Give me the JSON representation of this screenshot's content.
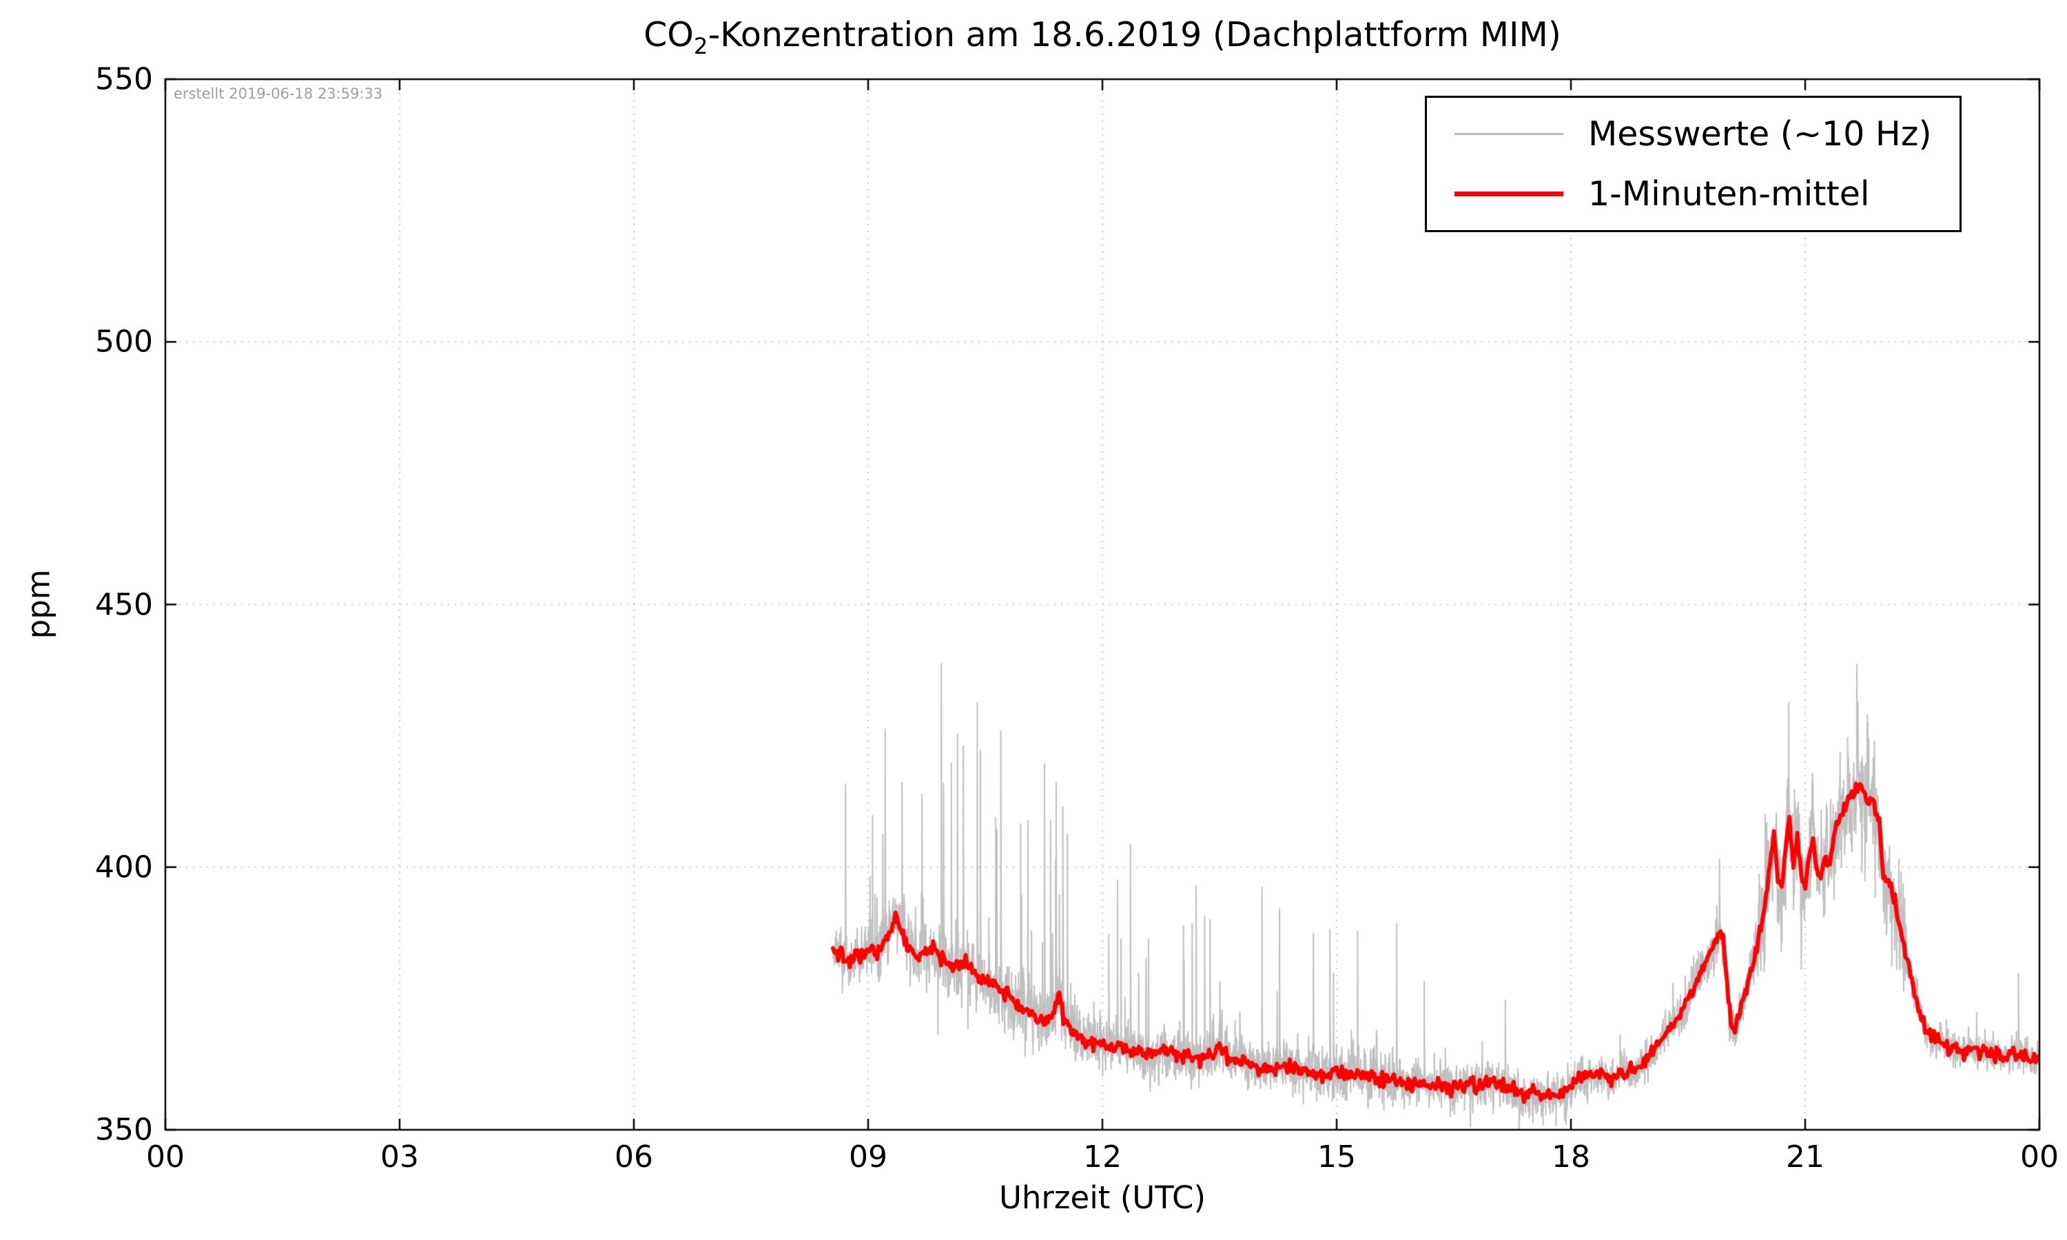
{
  "chart_data": {
    "type": "line",
    "title": "CO2-Konzentration am 18.6.2019 (Dachplattform MIM)",
    "title_parts": {
      "prefix": "CO",
      "subscript": "2",
      "rest": "-Konzentration am 18.6.2019 (Dachplattform MIM)"
    },
    "xlabel": "Uhrzeit (UTC)",
    "ylabel": "ppm",
    "annotation": "erstellt 2019-06-18 23:59:33",
    "xlim": [
      0,
      24
    ],
    "ylim": [
      350,
      550
    ],
    "xticks": {
      "positions": [
        0,
        3,
        6,
        9,
        12,
        15,
        18,
        21,
        24
      ],
      "labels": [
        "00",
        "03",
        "06",
        "09",
        "12",
        "15",
        "18",
        "21",
        "00"
      ]
    },
    "yticks": {
      "positions": [
        350,
        400,
        450,
        500,
        550
      ],
      "labels": [
        "350",
        "400",
        "450",
        "500",
        "550"
      ]
    },
    "grid": {
      "style": "dotted",
      "color": "#c9c9c9"
    },
    "legend": {
      "position": "upper right",
      "entries": [
        {
          "label": "Messwerte (~10 Hz)",
          "color": "#b8b8b8",
          "linewidth": 2
        },
        {
          "label": "1-Minuten-mittel",
          "color": "#ff0000",
          "linewidth": 6
        }
      ]
    },
    "series": [
      {
        "name": "1-Minuten-mittel",
        "color": "#ff0000",
        "points": [
          [
            8.55,
            384
          ],
          [
            8.65,
            383.5
          ],
          [
            8.8,
            382.5
          ],
          [
            9.0,
            384
          ],
          [
            9.1,
            383.5
          ],
          [
            9.25,
            386
          ],
          [
            9.35,
            391
          ],
          [
            9.45,
            387
          ],
          [
            9.55,
            384
          ],
          [
            9.7,
            383.5
          ],
          [
            9.85,
            384.5
          ],
          [
            10.0,
            382
          ],
          [
            10.1,
            381
          ],
          [
            10.25,
            382
          ],
          [
            10.4,
            379
          ],
          [
            10.55,
            378
          ],
          [
            10.7,
            377
          ],
          [
            10.85,
            374.5
          ],
          [
            11.0,
            373
          ],
          [
            11.15,
            371.5
          ],
          [
            11.3,
            370.5
          ],
          [
            11.4,
            373
          ],
          [
            11.45,
            376
          ],
          [
            11.5,
            371
          ],
          [
            11.65,
            368.5
          ],
          [
            11.8,
            367
          ],
          [
            12.0,
            366
          ],
          [
            12.2,
            365.5
          ],
          [
            12.4,
            365
          ],
          [
            12.6,
            364.5
          ],
          [
            12.8,
            365
          ],
          [
            13.0,
            364
          ],
          [
            13.2,
            363.5
          ],
          [
            13.4,
            364.5
          ],
          [
            13.5,
            366
          ],
          [
            13.6,
            364
          ],
          [
            13.8,
            363
          ],
          [
            14.0,
            362
          ],
          [
            14.2,
            361.5
          ],
          [
            14.4,
            362
          ],
          [
            14.6,
            361
          ],
          [
            14.8,
            360.5
          ],
          [
            15.0,
            361
          ],
          [
            15.2,
            360.5
          ],
          [
            15.5,
            360
          ],
          [
            15.8,
            359.5
          ],
          [
            16.0,
            359
          ],
          [
            16.2,
            358.5
          ],
          [
            16.5,
            358
          ],
          [
            16.8,
            358.5
          ],
          [
            17.0,
            359
          ],
          [
            17.2,
            358
          ],
          [
            17.4,
            357
          ],
          [
            17.6,
            356.5
          ],
          [
            17.75,
            356
          ],
          [
            17.9,
            357
          ],
          [
            18.0,
            358.5
          ],
          [
            18.15,
            360
          ],
          [
            18.3,
            360.5
          ],
          [
            18.5,
            360
          ],
          [
            18.7,
            361
          ],
          [
            18.9,
            362
          ],
          [
            19.0,
            364
          ],
          [
            19.1,
            366
          ],
          [
            19.2,
            368
          ],
          [
            19.35,
            371
          ],
          [
            19.5,
            375
          ],
          [
            19.6,
            378
          ],
          [
            19.7,
            381
          ],
          [
            19.8,
            384
          ],
          [
            19.9,
            388
          ],
          [
            19.95,
            386
          ],
          [
            20.05,
            370
          ],
          [
            20.1,
            369
          ],
          [
            20.2,
            374
          ],
          [
            20.3,
            380
          ],
          [
            20.4,
            386
          ],
          [
            20.5,
            394
          ],
          [
            20.55,
            400
          ],
          [
            20.6,
            407
          ],
          [
            20.65,
            398
          ],
          [
            20.7,
            396
          ],
          [
            20.75,
            403
          ],
          [
            20.8,
            409
          ],
          [
            20.85,
            400
          ],
          [
            20.9,
            407
          ],
          [
            20.95,
            398
          ],
          [
            21.0,
            396
          ],
          [
            21.05,
            402
          ],
          [
            21.1,
            406
          ],
          [
            21.15,
            399
          ],
          [
            21.2,
            398
          ],
          [
            21.25,
            402
          ],
          [
            21.3,
            400
          ],
          [
            21.35,
            404
          ],
          [
            21.4,
            408
          ],
          [
            21.5,
            411
          ],
          [
            21.6,
            414
          ],
          [
            21.7,
            416
          ],
          [
            21.75,
            415
          ],
          [
            21.8,
            412
          ],
          [
            21.85,
            413
          ],
          [
            21.9,
            410
          ],
          [
            21.95,
            409
          ],
          [
            22.0,
            398
          ],
          [
            22.05,
            397
          ],
          [
            22.1,
            396
          ],
          [
            22.15,
            393
          ],
          [
            22.2,
            390
          ],
          [
            22.3,
            383
          ],
          [
            22.4,
            376
          ],
          [
            22.5,
            371
          ],
          [
            22.6,
            368
          ],
          [
            22.7,
            367
          ],
          [
            22.8,
            366.5
          ],
          [
            22.9,
            365.5
          ],
          [
            23.0,
            365
          ],
          [
            23.1,
            365.5
          ],
          [
            23.2,
            365
          ],
          [
            23.4,
            364.5
          ],
          [
            23.5,
            364
          ],
          [
            23.7,
            364.5
          ],
          [
            23.8,
            364
          ],
          [
            23.9,
            363.5
          ],
          [
            24.0,
            363
          ]
        ]
      },
      {
        "name": "Messwerte (~10 Hz)",
        "color": "#b8b8b8",
        "t_start": 8.55,
        "t_end": 24.0,
        "sample_step_hours": 0.002,
        "noise_segments": [
          {
            "t0": 8.55,
            "t1": 9.0,
            "sigma": 2.2,
            "spike_p": 0.02,
            "spike_max": 44
          },
          {
            "t0": 9.0,
            "t1": 11.0,
            "sigma": 2.8,
            "spike_p": 0.028,
            "spike_max": 57
          },
          {
            "t0": 11.0,
            "t1": 12.0,
            "sigma": 2.8,
            "spike_p": 0.022,
            "spike_max": 48
          },
          {
            "t0": 12.0,
            "t1": 13.0,
            "sigma": 2.4,
            "spike_p": 0.016,
            "spike_max": 45
          },
          {
            "t0": 13.0,
            "t1": 14.5,
            "sigma": 2.4,
            "spike_p": 0.018,
            "spike_max": 32
          },
          {
            "t0": 14.5,
            "t1": 16.0,
            "sigma": 2.4,
            "spike_p": 0.016,
            "spike_max": 28
          },
          {
            "t0": 16.0,
            "t1": 18.0,
            "sigma": 2.2,
            "spike_p": 0.014,
            "spike_max": 20
          },
          {
            "t0": 18.0,
            "t1": 19.4,
            "sigma": 1.8,
            "spike_p": 0.008,
            "spike_max": 9
          },
          {
            "t0": 19.4,
            "t1": 20.4,
            "sigma": 2.4,
            "spike_p": 0.01,
            "spike_max": 16
          },
          {
            "t0": 20.4,
            "t1": 22.3,
            "sigma": 4.6,
            "spike_p": 0.015,
            "spike_max": 24
          },
          {
            "t0": 22.3,
            "t1": 24.01,
            "sigma": 1.6,
            "spike_p": 0.004,
            "spike_max": 18
          }
        ]
      }
    ]
  }
}
